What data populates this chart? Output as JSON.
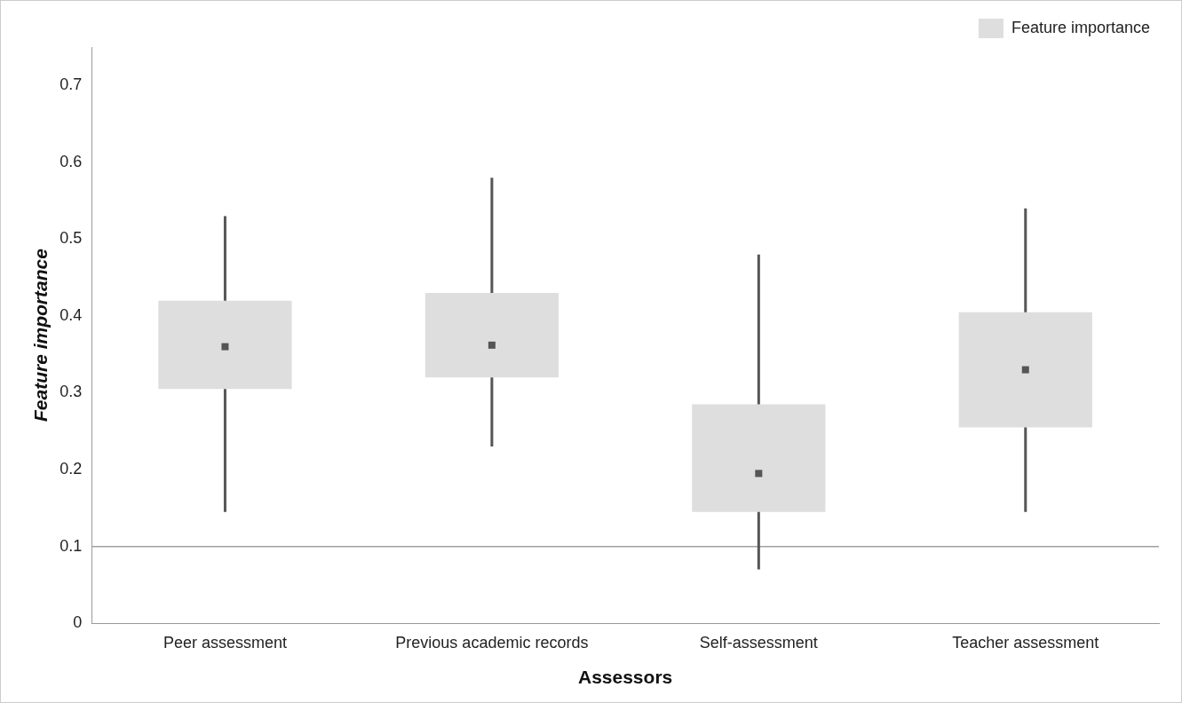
{
  "chart_data": {
    "type": "box",
    "xlabel": "Assessors",
    "ylabel": "Feature importance",
    "categories": [
      "Peer assessment",
      "Previous academic records",
      "Self-assessment",
      "Teacher assessment"
    ],
    "series": [
      {
        "name": "Feature importance",
        "color": "#dedede",
        "boxes": [
          {
            "low": 0.145,
            "q1": 0.305,
            "median": 0.36,
            "q3": 0.42,
            "high": 0.53
          },
          {
            "low": 0.23,
            "q1": 0.32,
            "median": 0.362,
            "q3": 0.43,
            "high": 0.58
          },
          {
            "low": 0.07,
            "q1": 0.145,
            "median": 0.195,
            "q3": 0.285,
            "high": 0.48
          },
          {
            "low": 0.145,
            "q1": 0.255,
            "median": 0.33,
            "q3": 0.405,
            "high": 0.54
          }
        ]
      }
    ],
    "ylim": [
      0,
      0.75
    ],
    "yticks": [
      0,
      0.1,
      0.2,
      0.3,
      0.4,
      0.5,
      0.6,
      0.7
    ],
    "ref_lines": [
      {
        "axis": "y",
        "value": 0.1,
        "color": "#a0a0a0"
      }
    ],
    "grid": false,
    "legend": "top right"
  }
}
